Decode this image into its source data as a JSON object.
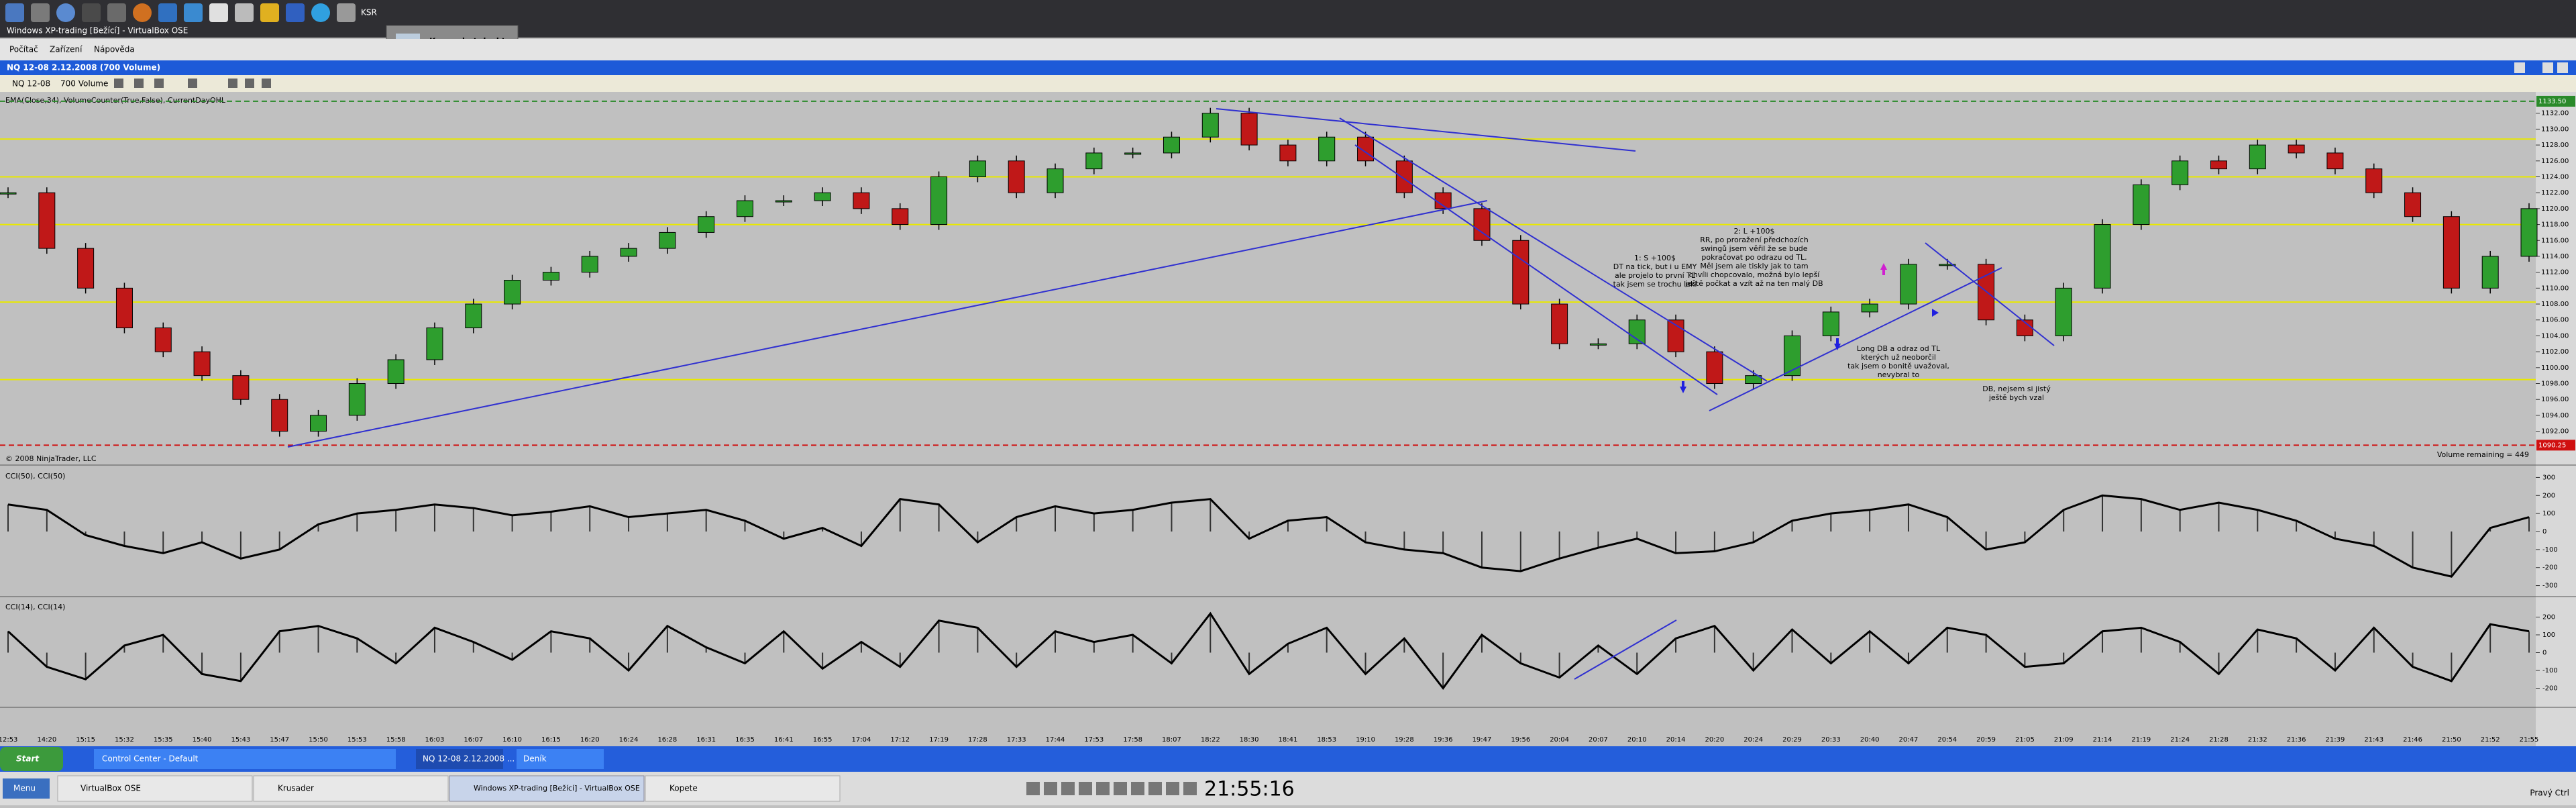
{
  "screen": {
    "top_panel": {
      "launcher_text": "KSR",
      "snapshot_tooltip": "Ksnapshot.desktop"
    },
    "vm_title": "Windows XP-trading [Bežící] - VirtualBox OSE",
    "vm_menu": [
      "Počítač",
      "Zařízení",
      "Nápověda"
    ],
    "window_title": "NQ 12-08  2.12.2008  (700 Volume)",
    "toolbar": {
      "instrument": "NQ 12-08",
      "interval": "700 Volume"
    },
    "indicators_label": "EMA(Close,34), VolumeCounter(True,False), CurrentDayOHL",
    "copyright": "© 2008 NinjaTrader, LLC",
    "volume_remaining": "Volume remaining = 449",
    "annotations": [
      [
        "1: S +100$",
        "DT na tick, but i u EMY",
        "ale projelo to první TL",
        "tak jsem se trochu lekl"
      ],
      [
        "2: L +100$",
        "RR, po proražení předchozích",
        "swingů jsem věřil že se bude",
        "pokračovat po odrazu od TL.",
        "Měl jsem ale tiskly jak to tam",
        "chvíli chopcovalo, možná bylo lepší",
        "ještě počkat a vzít až na ten malý DB"
      ],
      [
        "Long DB a odraz od TL",
        "kterých už neoborčil",
        "tak jsem o bonitě uvažoval,",
        "nevybral to"
      ],
      [
        "DB, nejsem si jistý",
        "ještě bych vzal"
      ]
    ],
    "xp_taskbar": [
      "Start",
      "Control Center - Default",
      "NQ 12-08  2.12.2008 ...",
      "Deník"
    ],
    "host_taskbar": {
      "menu": "Menu",
      "tasks": [
        "VirtualBox OSE",
        "Krusader",
        "Windows XP-trading [Bežící] - VirtualBox OSE",
        "Kopete"
      ],
      "clock": "21:55:16",
      "keyboard": "Pravý Ctrl"
    }
  },
  "chart_data": {
    "type": "candlestick",
    "categories": [
      "12:53",
      "14:20",
      "15:15",
      "15:32",
      "15:35",
      "15:40",
      "15:43",
      "15:47",
      "15:50",
      "15:53",
      "15:58",
      "16:03",
      "16:07",
      "16:10",
      "16:15",
      "16:20",
      "16:24",
      "16:28",
      "16:31",
      "16:35",
      "16:41",
      "16:55",
      "17:04",
      "17:12",
      "17:19",
      "17:28",
      "17:33",
      "17:44",
      "17:53",
      "17:58",
      "18:07",
      "18:22",
      "18:30",
      "18:41",
      "18:53",
      "19:10",
      "19:28",
      "19:36",
      "19:47",
      "19:56",
      "20:04",
      "20:07",
      "20:10",
      "20:14",
      "20:20",
      "20:24",
      "20:29",
      "20:33",
      "20:40",
      "20:47",
      "20:54",
      "20:59",
      "21:05",
      "21:09",
      "21:14",
      "21:19",
      "21:24",
      "21:28",
      "21:32",
      "21:36",
      "21:39",
      "21:43",
      "21:46",
      "21:50",
      "21:52",
      "21:55"
    ],
    "closes": [
      1122,
      1115,
      1110,
      1105,
      1102,
      1099,
      1096,
      1092,
      1094,
      1098,
      1101,
      1105,
      1108,
      1111,
      1112,
      1114,
      1115,
      1117,
      1119,
      1121,
      1121,
      1122,
      1120,
      1118,
      1124,
      1126,
      1122,
      1125,
      1127,
      1127,
      1129,
      1132,
      1128,
      1126,
      1129,
      1126,
      1122,
      1120,
      1116,
      1108,
      1103,
      1103,
      1106,
      1102,
      1098,
      1099,
      1104,
      1107,
      1108,
      1113,
      1113,
      1106,
      1104,
      1110,
      1118,
      1123,
      1126,
      1125,
      1128,
      1127,
      1125,
      1122,
      1119,
      1110,
      1114,
      1120
    ],
    "up_color": "#2e9e2e",
    "down_color": "#c01818",
    "ylim": [
      1088,
      1134
    ],
    "yticks": [
      {
        "value": 1132,
        "label": "1132.00"
      },
      {
        "value": 1130,
        "label": "1130.00"
      },
      {
        "value": 1128,
        "label": "1128.00"
      },
      {
        "value": 1126,
        "label": "1126.00"
      },
      {
        "value": 1124,
        "label": "1124.00"
      },
      {
        "value": 1122,
        "label": "1122.00"
      },
      {
        "value": 1120,
        "label": "1120.00"
      },
      {
        "value": 1118,
        "label": "1118.00"
      },
      {
        "value": 1116,
        "label": "1116.00"
      },
      {
        "value": 1114,
        "label": "1114.00"
      },
      {
        "value": 1112,
        "label": "1112.00"
      },
      {
        "value": 1110,
        "label": "1110.00"
      },
      {
        "value": 1108,
        "label": "1108.00"
      },
      {
        "value": 1106,
        "label": "1106.00"
      },
      {
        "value": 1104,
        "label": "1104.00"
      },
      {
        "value": 1102,
        "label": "1102.00"
      },
      {
        "value": 1100,
        "label": "1100.00"
      },
      {
        "value": 1098,
        "label": "1098.00"
      },
      {
        "value": 1096,
        "label": "1096.00"
      },
      {
        "value": 1094,
        "label": "1094.00"
      },
      {
        "value": 1092,
        "label": "1092.00"
      }
    ],
    "levels": [
      {
        "value": 1133.5,
        "label": "1133.50",
        "color": "#2a8a2a",
        "dashed": true
      },
      {
        "value": 1128.75,
        "color": "#e8e800",
        "dashed": false
      },
      {
        "value": 1124,
        "color": "#e8e800",
        "dashed": false
      },
      {
        "value": 1118,
        "color": "#e8e800",
        "dashed": false
      },
      {
        "value": 1108.25,
        "color": "#e8e800",
        "dashed": false
      },
      {
        "value": 1098.5,
        "color": "#e8e800",
        "dashed": false
      },
      {
        "value": 1090.25,
        "label": "1090.25",
        "color": "#d01010",
        "dashed": true
      }
    ],
    "panels": [
      {
        "title": "CCI(50), CCI(50)",
        "ylim": [
          -350,
          350
        ],
        "yticks": [
          300,
          200,
          100,
          0,
          -100,
          -200,
          -300
        ],
        "values": [
          150,
          120,
          -20,
          -80,
          -120,
          -60,
          -150,
          -100,
          40,
          100,
          120,
          150,
          130,
          90,
          110,
          140,
          80,
          100,
          120,
          60,
          -40,
          20,
          -80,
          180,
          150,
          -60,
          80,
          140,
          100,
          120,
          160,
          180,
          -40,
          60,
          80,
          -60,
          -100,
          -120,
          -200,
          -220,
          -150,
          -90,
          -40,
          -120,
          -110,
          -60,
          60,
          100,
          120,
          150,
          80,
          -100,
          -60,
          120,
          200,
          180,
          120,
          160,
          120,
          60,
          -40,
          -80,
          -200,
          -250,
          20,
          80
        ]
      },
      {
        "title": "CCI(14), CCI(14)",
        "ylim": [
          -300,
          300
        ],
        "yticks": [
          200,
          100,
          0,
          -100,
          -200
        ],
        "values": [
          120,
          -80,
          -150,
          40,
          100,
          -120,
          -160,
          120,
          150,
          80,
          -60,
          140,
          60,
          -40,
          120,
          80,
          -100,
          150,
          30,
          -60,
          120,
          -90,
          60,
          -80,
          180,
          140,
          -80,
          120,
          60,
          100,
          -60,
          220,
          -120,
          50,
          140,
          -120,
          80,
          -200,
          100,
          -60,
          -140,
          40,
          -120,
          80,
          150,
          -100,
          130,
          -60,
          120,
          -60,
          140,
          100,
          -80,
          -60,
          120,
          140,
          60,
          -120,
          130,
          80,
          -100,
          140,
          -80,
          -160,
          160,
          120
        ]
      }
    ]
  }
}
